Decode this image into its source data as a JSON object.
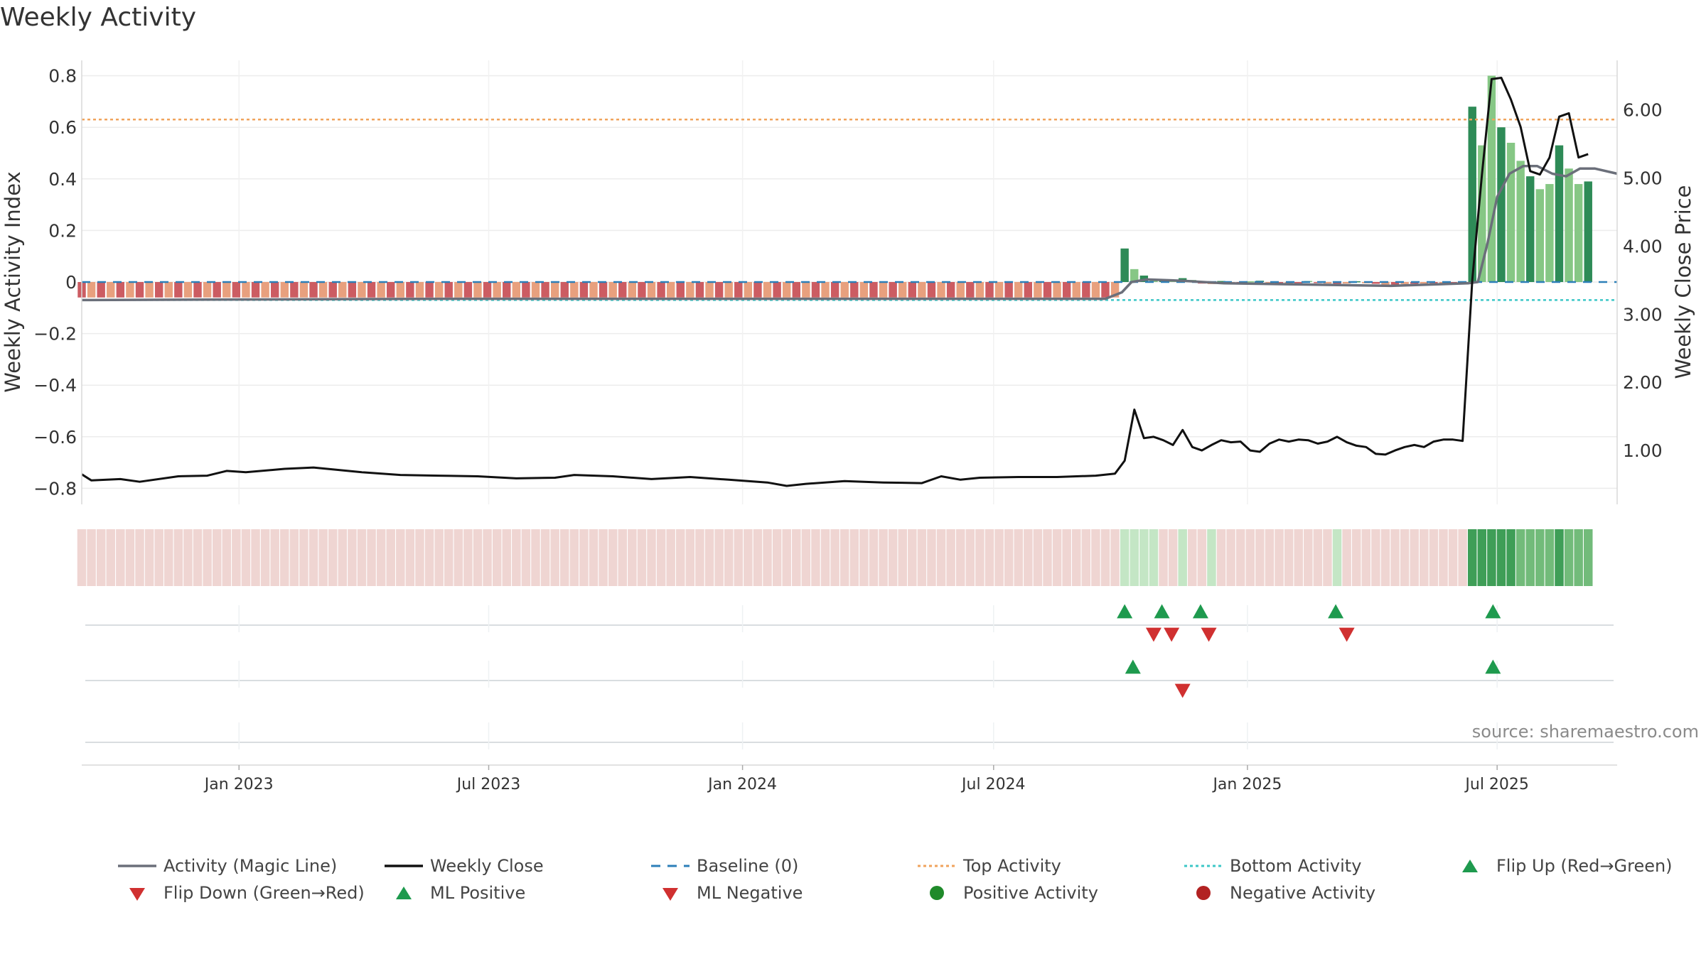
{
  "title": "Weekly Activity",
  "source_label": "source: sharemaestro.com",
  "colors": {
    "magic_line": "#6b6f7a",
    "close": "#111111",
    "baseline": "#2c7fb8",
    "top": "#f0a35c",
    "bottom": "#3cc7c7",
    "pos_dark": "#2e8b57",
    "pos_light": "#86c785",
    "neg_dark": "#cc5c62",
    "neg_light": "#e8a07e",
    "flip_up": "#1e9a4e",
    "flip_down": "#d03030",
    "dot_pos": "#1f8a2a",
    "dot_neg": "#b22222"
  },
  "legend": [
    {
      "label": "Activity (Magic Line)",
      "symbol": "line",
      "color": "#6b6f7a"
    },
    {
      "label": "Weekly Close",
      "symbol": "line",
      "color": "#111111"
    },
    {
      "label": "Baseline (0)",
      "symbol": "dash",
      "color": "#2c7fb8"
    },
    {
      "label": "Top Activity",
      "symbol": "dot-line",
      "color": "#f0a35c"
    },
    {
      "label": "Bottom Activity",
      "symbol": "dot-line",
      "color": "#3cc7c7"
    },
    {
      "label": "Flip Up (Red→Green)",
      "symbol": "triangle-up",
      "color": "#1e9a4e"
    },
    {
      "label": "Flip Down (Green→Red)",
      "symbol": "triangle-down",
      "color": "#d03030"
    },
    {
      "label": "ML Positive",
      "symbol": "triangle-up",
      "color": "#1e9a4e"
    },
    {
      "label": "ML Negative",
      "symbol": "triangle-down",
      "color": "#d03030"
    },
    {
      "label": "Positive Activity",
      "symbol": "circle",
      "color": "#1f8a2a"
    },
    {
      "label": "Negative Activity",
      "symbol": "circle",
      "color": "#b22222"
    }
  ],
  "chart_data": {
    "type": "bar",
    "title": "Weekly Activity",
    "ylabel": "Weekly Activity Index",
    "y2label": "Weekly Close Price",
    "ylim": [
      -0.86,
      0.86
    ],
    "y2lim": [
      0.35,
      6.75
    ],
    "yticks": [
      "0.8",
      "0.6",
      "0.4",
      "0.2",
      "0",
      "−0.2",
      "−0.4",
      "−0.6",
      "−0.8"
    ],
    "ytick_values": [
      0.8,
      0.6,
      0.4,
      0.2,
      0,
      -0.2,
      -0.4,
      -0.6,
      -0.8
    ],
    "y2ticks": [
      "6.00",
      "5.00",
      "4.00",
      "3.00",
      "2.00",
      "1.00"
    ],
    "y2tick_values": [
      6,
      5,
      4,
      3,
      2,
      1
    ],
    "x_start": "2022-09-09",
    "x_end": "2025-09-26",
    "xticks": [
      {
        "date": "2023-01-01",
        "label": "Jan 2023"
      },
      {
        "date": "2023-07-01",
        "label": "Jul 2023"
      },
      {
        "date": "2024-01-01",
        "label": "Jan 2024"
      },
      {
        "date": "2024-07-01",
        "label": "Jul 2024"
      },
      {
        "date": "2025-01-01",
        "label": "Jan 2025"
      },
      {
        "date": "2025-07-01",
        "label": "Jul 2025"
      }
    ],
    "reference_lines": {
      "baseline": 0,
      "top_activity": 0.63,
      "bottom_activity": -0.07
    },
    "grid": true,
    "legend_position": "bottom",
    "series": [
      {
        "name": "Activity",
        "kind": "bar",
        "segments": [
          {
            "from": "2022-09-09",
            "to": "2024-09-27",
            "value": -0.06
          },
          {
            "from": "2024-10-04",
            "values": [
              0.13,
              0.05,
              0.025,
              0.01,
              0.008,
              0.005,
              0.015,
              0.008,
              -0.006,
              -0.008,
              0.004,
              -0.004,
              -0.006,
              0.003,
              0.005,
              -0.008,
              -0.012,
              -0.007,
              -0.005,
              0.004,
              -0.004,
              -0.006,
              -0.009,
              -0.006,
              0.003,
              -0.005,
              -0.007,
              -0.012,
              -0.01,
              -0.008,
              -0.007,
              -0.006,
              -0.005,
              -0.004,
              -0.003,
              0.003,
              0.68,
              0.53,
              0.8,
              0.6,
              0.54,
              0.47,
              0.41,
              0.36,
              0.38,
              0.53,
              0.44,
              0.38,
              0.39
            ]
          }
        ]
      },
      {
        "name": "Activity (Magic Line)",
        "kind": "line",
        "points": [
          {
            "x": "2022-09-09",
            "y": -0.07
          },
          {
            "x": "2023-06-01",
            "y": -0.065
          },
          {
            "x": "2024-09-20",
            "y": -0.065
          },
          {
            "x": "2024-10-02",
            "y": -0.04
          },
          {
            "x": "2024-10-09",
            "y": 0.0
          },
          {
            "x": "2024-10-20",
            "y": 0.01
          },
          {
            "x": "2024-11-15",
            "y": 0.005
          },
          {
            "x": "2024-12-15",
            "y": -0.005
          },
          {
            "x": "2025-02-15",
            "y": -0.01
          },
          {
            "x": "2025-04-15",
            "y": -0.015
          },
          {
            "x": "2025-06-10",
            "y": -0.005
          },
          {
            "x": "2025-06-17",
            "y": 0.0
          },
          {
            "x": "2025-06-24",
            "y": 0.15
          },
          {
            "x": "2025-07-01",
            "y": 0.33
          },
          {
            "x": "2025-07-10",
            "y": 0.42
          },
          {
            "x": "2025-07-20",
            "y": 0.45
          },
          {
            "x": "2025-07-30",
            "y": 0.45
          },
          {
            "x": "2025-08-10",
            "y": 0.42
          },
          {
            "x": "2025-08-20",
            "y": 0.41
          },
          {
            "x": "2025-08-30",
            "y": 0.44
          },
          {
            "x": "2025-09-10",
            "y": 0.44
          },
          {
            "x": "2025-09-26",
            "y": 0.42
          }
        ]
      },
      {
        "name": "Weekly Close",
        "kind": "line",
        "axis": "right",
        "points": [
          {
            "x": "2022-09-09",
            "y": 0.65
          },
          {
            "x": "2022-09-16",
            "y": 0.56
          },
          {
            "x": "2022-10-07",
            "y": 0.58
          },
          {
            "x": "2022-10-21",
            "y": 0.54
          },
          {
            "x": "2022-11-18",
            "y": 0.62
          },
          {
            "x": "2022-12-09",
            "y": 0.63
          },
          {
            "x": "2022-12-23",
            "y": 0.7
          },
          {
            "x": "2023-01-06",
            "y": 0.68
          },
          {
            "x": "2023-02-03",
            "y": 0.73
          },
          {
            "x": "2023-02-24",
            "y": 0.75
          },
          {
            "x": "2023-03-31",
            "y": 0.68
          },
          {
            "x": "2023-04-28",
            "y": 0.64
          },
          {
            "x": "2023-05-26",
            "y": 0.63
          },
          {
            "x": "2023-06-23",
            "y": 0.62
          },
          {
            "x": "2023-07-21",
            "y": 0.59
          },
          {
            "x": "2023-08-18",
            "y": 0.6
          },
          {
            "x": "2023-09-01",
            "y": 0.64
          },
          {
            "x": "2023-09-29",
            "y": 0.62
          },
          {
            "x": "2023-10-27",
            "y": 0.58
          },
          {
            "x": "2023-11-24",
            "y": 0.61
          },
          {
            "x": "2023-12-22",
            "y": 0.57
          },
          {
            "x": "2024-01-19",
            "y": 0.53
          },
          {
            "x": "2024-02-02",
            "y": 0.48
          },
          {
            "x": "2024-02-16",
            "y": 0.51
          },
          {
            "x": "2024-03-15",
            "y": 0.55
          },
          {
            "x": "2024-04-12",
            "y": 0.53
          },
          {
            "x": "2024-05-10",
            "y": 0.52
          },
          {
            "x": "2024-05-24",
            "y": 0.62
          },
          {
            "x": "2024-06-07",
            "y": 0.57
          },
          {
            "x": "2024-06-21",
            "y": 0.6
          },
          {
            "x": "2024-07-19",
            "y": 0.61
          },
          {
            "x": "2024-08-16",
            "y": 0.61
          },
          {
            "x": "2024-09-13",
            "y": 0.63
          },
          {
            "x": "2024-09-27",
            "y": 0.66
          },
          {
            "x": "2024-10-04",
            "y": 0.85
          },
          {
            "x": "2024-10-11",
            "y": 1.6
          },
          {
            "x": "2024-10-18",
            "y": 1.18
          },
          {
            "x": "2024-10-25",
            "y": 1.2
          },
          {
            "x": "2024-11-01",
            "y": 1.15
          },
          {
            "x": "2024-11-08",
            "y": 1.08
          },
          {
            "x": "2024-11-15",
            "y": 1.3
          },
          {
            "x": "2024-11-22",
            "y": 1.05
          },
          {
            "x": "2024-11-29",
            "y": 1.0
          },
          {
            "x": "2024-12-06",
            "y": 1.08
          },
          {
            "x": "2024-12-13",
            "y": 1.15
          },
          {
            "x": "2024-12-20",
            "y": 1.12
          },
          {
            "x": "2024-12-27",
            "y": 1.13
          },
          {
            "x": "2025-01-03",
            "y": 1.0
          },
          {
            "x": "2025-01-10",
            "y": 0.98
          },
          {
            "x": "2025-01-17",
            "y": 1.1
          },
          {
            "x": "2025-01-24",
            "y": 1.16
          },
          {
            "x": "2025-01-31",
            "y": 1.13
          },
          {
            "x": "2025-02-07",
            "y": 1.16
          },
          {
            "x": "2025-02-14",
            "y": 1.15
          },
          {
            "x": "2025-02-21",
            "y": 1.1
          },
          {
            "x": "2025-02-28",
            "y": 1.13
          },
          {
            "x": "2025-03-07",
            "y": 1.2
          },
          {
            "x": "2025-03-14",
            "y": 1.12
          },
          {
            "x": "2025-03-21",
            "y": 1.07
          },
          {
            "x": "2025-03-28",
            "y": 1.05
          },
          {
            "x": "2025-04-04",
            "y": 0.95
          },
          {
            "x": "2025-04-11",
            "y": 0.94
          },
          {
            "x": "2025-04-18",
            "y": 1.0
          },
          {
            "x": "2025-04-25",
            "y": 1.05
          },
          {
            "x": "2025-05-02",
            "y": 1.08
          },
          {
            "x": "2025-05-09",
            "y": 1.05
          },
          {
            "x": "2025-05-16",
            "y": 1.13
          },
          {
            "x": "2025-05-23",
            "y": 1.16
          },
          {
            "x": "2025-05-30",
            "y": 1.16
          },
          {
            "x": "2025-06-06",
            "y": 1.14
          },
          {
            "x": "2025-06-13",
            "y": 3.5
          },
          {
            "x": "2025-06-20",
            "y": 5.05
          },
          {
            "x": "2025-06-27",
            "y": 6.45
          },
          {
            "x": "2025-07-04",
            "y": 6.47
          },
          {
            "x": "2025-07-11",
            "y": 6.15
          },
          {
            "x": "2025-07-18",
            "y": 5.75
          },
          {
            "x": "2025-07-25",
            "y": 5.1
          },
          {
            "x": "2025-08-01",
            "y": 5.05
          },
          {
            "x": "2025-08-08",
            "y": 5.3
          },
          {
            "x": "2025-08-15",
            "y": 5.9
          },
          {
            "x": "2025-08-22",
            "y": 5.95
          },
          {
            "x": "2025-08-29",
            "y": 5.3
          },
          {
            "x": "2025-09-05",
            "y": 5.35
          }
        ]
      },
      {
        "name": "Flip Up (Red→Green)",
        "kind": "marker",
        "dates": [
          "2024-10-04",
          "2024-10-31",
          "2024-11-28",
          "2025-03-06",
          "2025-06-28"
        ]
      },
      {
        "name": "Flip Down (Green→Red)",
        "kind": "marker",
        "dates": [
          "2024-10-25",
          "2024-11-07",
          "2024-12-04",
          "2025-03-14"
        ]
      },
      {
        "name": "ML Positive",
        "kind": "marker",
        "dates": [
          "2024-10-10",
          "2025-06-28"
        ]
      },
      {
        "name": "ML Negative",
        "kind": "marker",
        "dates": [
          "2024-11-15"
        ]
      }
    ],
    "activity_strip": {
      "description_hidden": true,
      "green_from": "2024-10-04",
      "green_to": "2024-10-31",
      "extra_green": [
        "2024-11-14",
        "2024-12-04",
        "2025-03-07"
      ],
      "strong_green_from": "2025-06-13"
    }
  }
}
